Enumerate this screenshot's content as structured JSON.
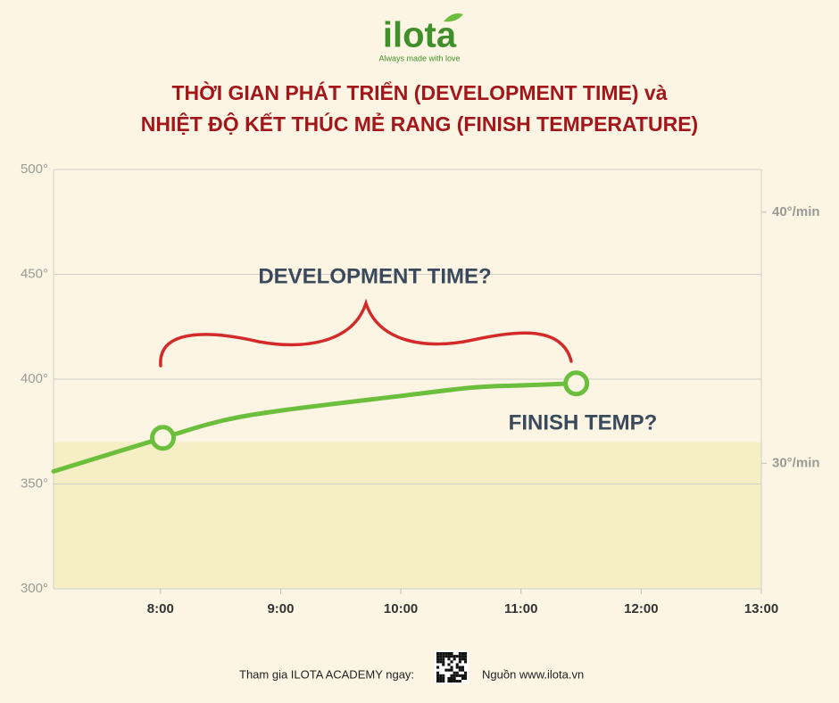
{
  "logo": {
    "name": "ilota",
    "tagline": "Always made with love"
  },
  "chart_data": {
    "type": "line",
    "title": [
      "THỜI GIAN PHÁT TRIỂN (DEVELOPMENT TIME) và",
      "NHIỆT ĐỘ KẾT THÚC MẺ RANG (FINISH TEMPERATURE)"
    ],
    "series": [
      {
        "color": "#6cbf3c",
        "x": [
          7.11,
          8.02,
          8.5,
          9,
          10,
          10.6,
          11,
          11.46
        ],
        "values": [
          356,
          372,
          380,
          385,
          392,
          396,
          397,
          398
        ]
      }
    ],
    "markers": {
      "color": "#6cbf3c",
      "x": [
        8.02,
        11.46
      ],
      "values": [
        372,
        398
      ]
    },
    "xlim": [
      7.11,
      13
    ],
    "xticks": [
      {
        "value": 8,
        "label": "8:00"
      },
      {
        "value": 9,
        "label": "9:00"
      },
      {
        "value": 10,
        "label": "10:00"
      },
      {
        "value": 11,
        "label": "11:00"
      },
      {
        "value": 12,
        "label": "12:00"
      },
      {
        "value": 13,
        "label": "13:00"
      }
    ],
    "ylim": [
      300,
      500
    ],
    "yticks": [
      {
        "value": 300,
        "label": "300°"
      },
      {
        "value": 350,
        "label": "350°"
      },
      {
        "value": 400,
        "label": "400°"
      },
      {
        "value": 450,
        "label": "450°"
      },
      {
        "value": 500,
        "label": "500°"
      }
    ],
    "y2lim": [
      25,
      41.7
    ],
    "y2ticks": [
      {
        "value": 30,
        "label": "30°/min"
      },
      {
        "value": 40,
        "label": "40°/min"
      }
    ],
    "band": {
      "ylim": [
        300,
        370
      ],
      "color": "#f6efc6"
    },
    "grid": true,
    "annotations": [
      "DEVELOPMENT TIME?",
      "FINISH TEMP?"
    ]
  },
  "footer": {
    "join": "Tham gia ILOTA ACADEMY ngay:",
    "source": "Nguồn www.ilota.vn"
  }
}
